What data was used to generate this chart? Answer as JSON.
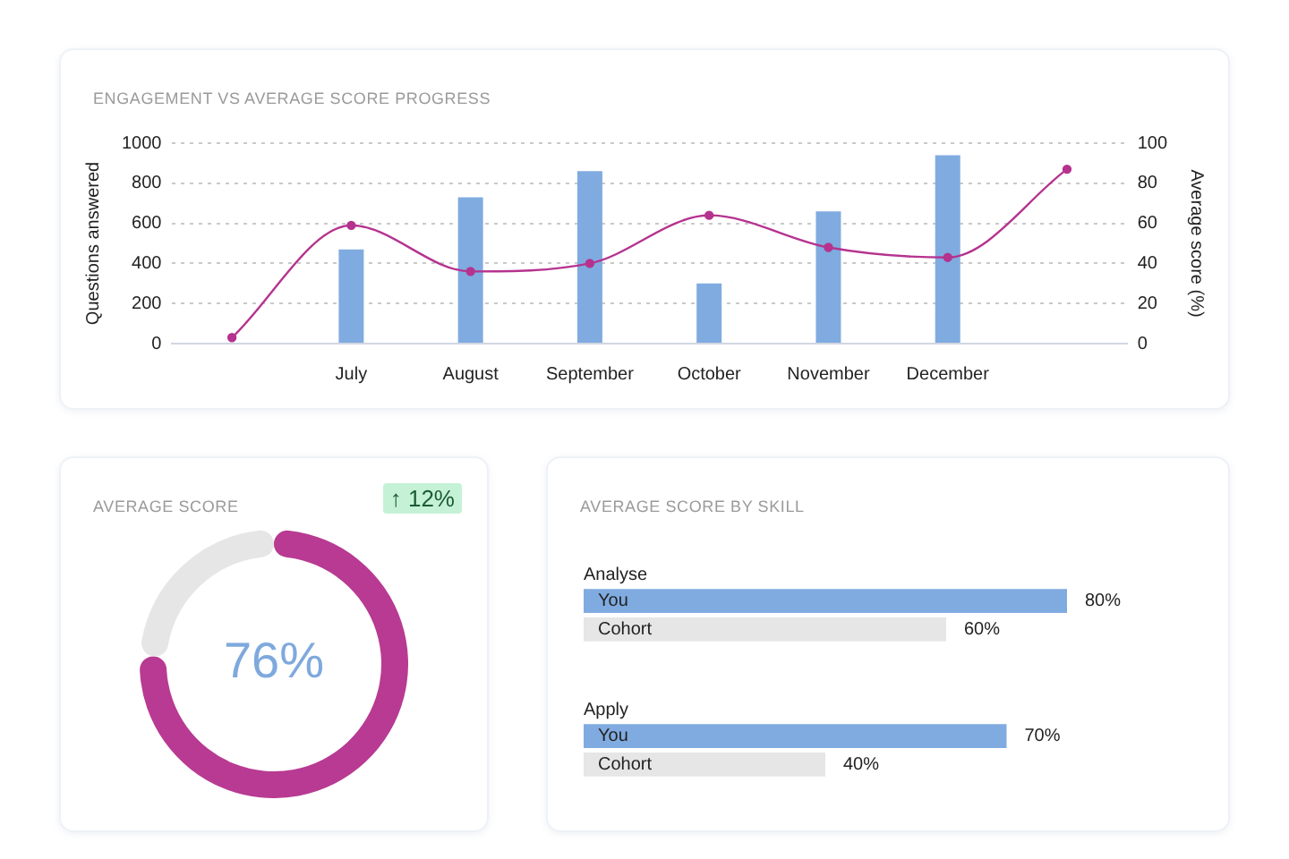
{
  "chart_data": [
    {
      "type": "bar",
      "title": "ENGAGEMENT VS AVERAGE SCORE PROGRESS",
      "categories": [
        null,
        "July",
        "August",
        "September",
        "October",
        "November",
        "December",
        null
      ],
      "ylabel": "Questions answered",
      "y2label": "Average score (%)",
      "series": [
        {
          "type": "bar",
          "color": "#80abe0",
          "values": [
            null,
            470,
            730,
            860,
            300,
            660,
            940,
            null
          ]
        },
        {
          "type": "line",
          "axis": "y2",
          "color": "#b5338f",
          "values": [
            3,
            59,
            36,
            40,
            64,
            48,
            43,
            87
          ]
        }
      ],
      "ylim": [
        0,
        1000
      ],
      "yticks": [
        0,
        200,
        400,
        600,
        800,
        1000
      ],
      "y2lim": [
        0,
        100
      ],
      "y2ticks": [
        0,
        20,
        40,
        60,
        80,
        100
      ],
      "grid": "y",
      "marker": "circle"
    },
    {
      "type": "donut",
      "title": "AVERAGE SCORE",
      "categories": [
        null,
        null
      ],
      "values": [
        76,
        24
      ],
      "colors": [
        "#b83a92",
        "#e6e6e6"
      ],
      "annotations": [
        "76%",
        "↑ 12%"
      ]
    },
    {
      "type": "bar",
      "orientation": "horizontal",
      "title": "AVERAGE SCORE BY SKILL",
      "categories": [
        "Analyse",
        "Apply"
      ],
      "series": [
        {
          "name": "You",
          "color": "#80abe0",
          "values": [
            80,
            70
          ],
          "value_labels": [
            "80%",
            "70%"
          ]
        },
        {
          "name": "Cohort",
          "color": "#e6e6e6",
          "values": [
            60,
            40
          ],
          "value_labels": [
            "60%",
            "40%"
          ]
        }
      ],
      "tick_labels": false
    }
  ]
}
